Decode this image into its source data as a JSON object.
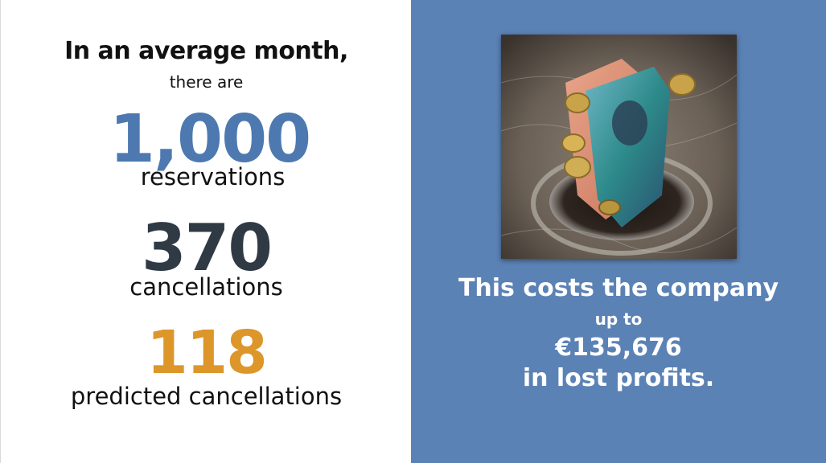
{
  "left": {
    "intro_bold": "In an average month,",
    "intro_small": "there are",
    "stat1": {
      "value": "1,000",
      "label": "reservations",
      "color": "#4d79b0"
    },
    "stat2": {
      "value": "370",
      "label": "cancellations",
      "color": "#2f3a45"
    },
    "stat3": {
      "value": "118",
      "label": "predicted cancellations",
      "color": "#dd962a"
    }
  },
  "right": {
    "background": "#5b82b5",
    "image_icon": "money-down-drain-photo",
    "line1": "This costs the company",
    "line2": "up to",
    "line3": "€135,676",
    "line4": "in lost profits."
  }
}
